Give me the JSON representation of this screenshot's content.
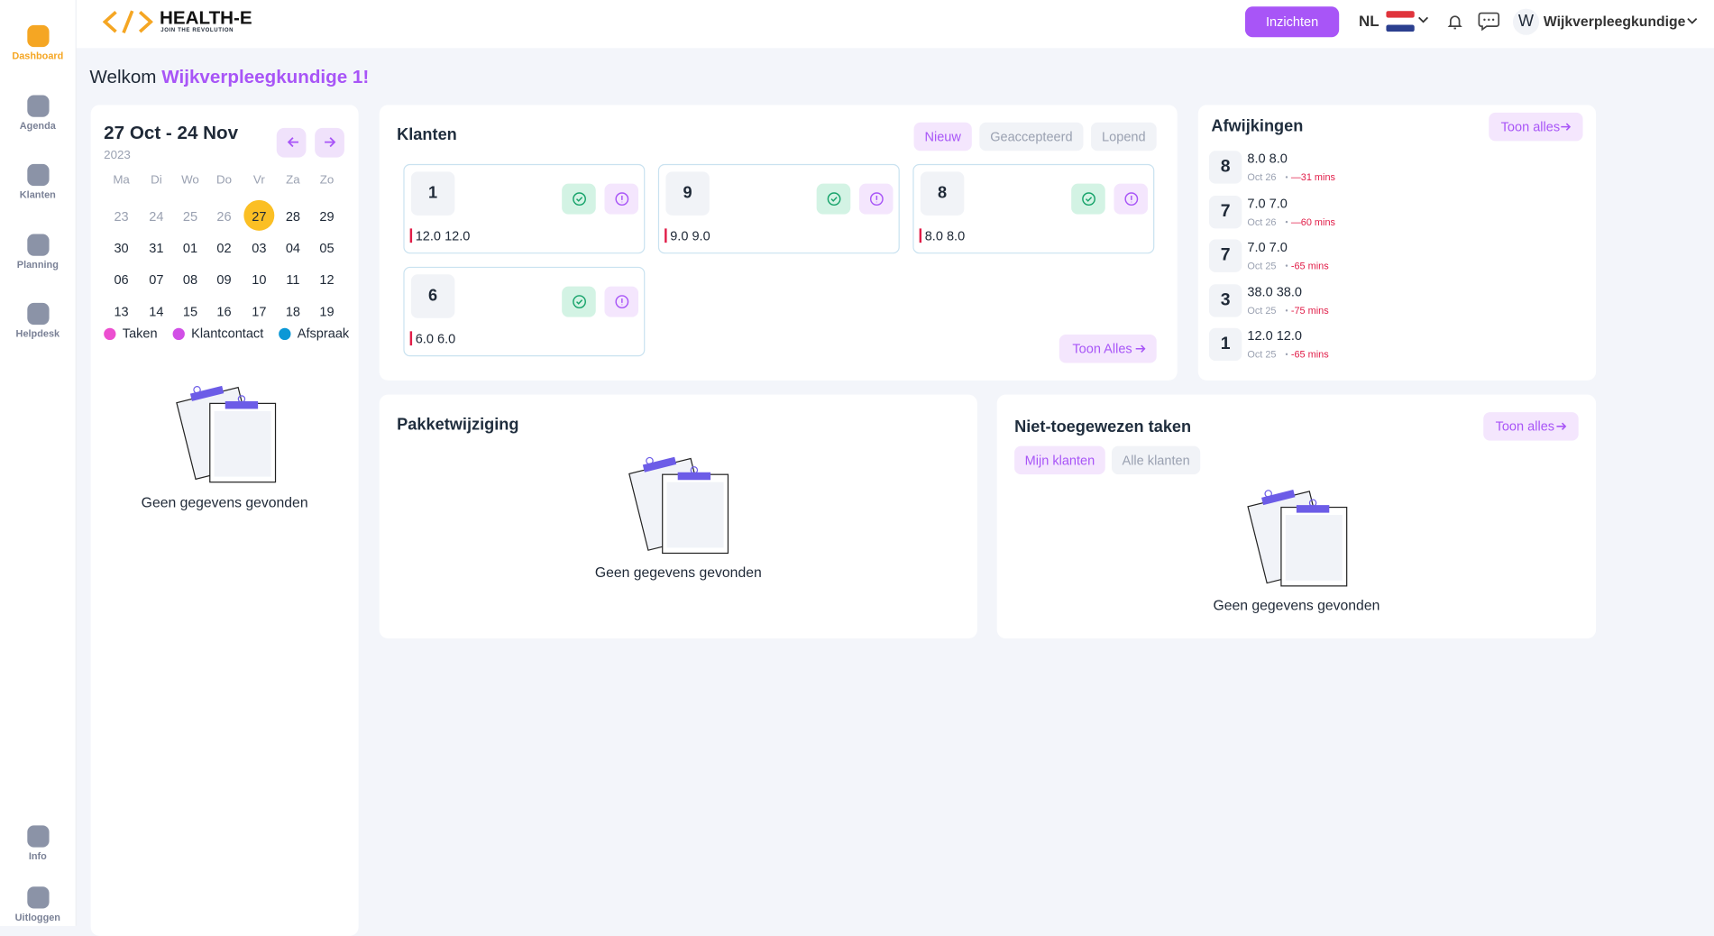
{
  "sidebar": {
    "items": [
      {
        "label": "Dashboard"
      },
      {
        "label": "Agenda"
      },
      {
        "label": "Klanten"
      },
      {
        "label": "Planning"
      },
      {
        "label": "Helpdesk"
      }
    ],
    "bottom": [
      {
        "label": "Info"
      },
      {
        "label": "Uitloggen"
      }
    ]
  },
  "header": {
    "logo": "HEALTH-E",
    "tagline": "JOIN THE REVOLUTION",
    "insights": "Inzichten",
    "language": "NL",
    "user_initial": "W",
    "user": "Wijkverpleegkundige"
  },
  "welcome": {
    "text": "Welkom",
    "name": "Wijkverpleegkundige 1!"
  },
  "calendar": {
    "range": "27 Oct - 24 Nov",
    "year": "2023",
    "weekdays": [
      "Ma",
      "Di",
      "Wo",
      "Do",
      "Vr",
      "Za",
      "Zo"
    ],
    "weeks": [
      [
        {
          "day": "23",
          "muted": true
        },
        {
          "day": "24",
          "muted": true
        },
        {
          "day": "25",
          "muted": true
        },
        {
          "day": "26",
          "muted": true
        },
        {
          "day": "27",
          "today": true
        },
        {
          "day": "28"
        },
        {
          "day": "29"
        }
      ],
      [
        {
          "day": "30"
        },
        {
          "day": "31"
        },
        {
          "day": "01"
        },
        {
          "day": "02"
        },
        {
          "day": "03"
        },
        {
          "day": "04"
        },
        {
          "day": "05"
        }
      ],
      [
        {
          "day": "06"
        },
        {
          "day": "07"
        },
        {
          "day": "08"
        },
        {
          "day": "09"
        },
        {
          "day": "10"
        },
        {
          "day": "11"
        },
        {
          "day": "12"
        }
      ],
      [
        {
          "day": "13"
        },
        {
          "day": "14"
        },
        {
          "day": "15"
        },
        {
          "day": "16"
        },
        {
          "day": "17"
        },
        {
          "day": "18"
        },
        {
          "day": "19"
        }
      ]
    ],
    "legend": [
      {
        "label": "Taken",
        "color": "#ec4fd0"
      },
      {
        "label": "Klantcontact",
        "color": "#d14fe6"
      },
      {
        "label": "Afspraak",
        "color": "#0b98d6"
      }
    ],
    "empty": "Geen gegevens gevonden"
  },
  "clients": {
    "title": "Klanten",
    "tabs": [
      "Nieuw",
      "Geaccepteerd",
      "Lopend"
    ],
    "cards": [
      {
        "number": "1",
        "hours": "12.0 12.0"
      },
      {
        "number": "9",
        "hours": "9.0 9.0"
      },
      {
        "number": "8",
        "hours": "8.0 8.0"
      },
      {
        "number": "6",
        "hours": "6.0 6.0"
      }
    ],
    "show_all": "Toon Alles"
  },
  "deviations": {
    "title": "Afwijkingen",
    "show_all": "Toon alles",
    "items": [
      {
        "number": "8",
        "hours": "8.0 8.0",
        "date": "Oct 26",
        "diff": "—31 mins"
      },
      {
        "number": "7",
        "hours": "7.0 7.0",
        "date": "Oct 26",
        "diff": "—60 mins"
      },
      {
        "number": "7",
        "hours": "7.0 7.0",
        "date": "Oct 25",
        "diff": "-65 mins"
      },
      {
        "number": "3",
        "hours": "38.0 38.0",
        "date": "Oct 25",
        "diff": "-75 mins"
      },
      {
        "number": "1",
        "hours": "12.0 12.0",
        "date": "Oct 25",
        "diff": "-65 mins"
      }
    ]
  },
  "package": {
    "title": "Pakketwijziging",
    "empty": "Geen gegevens gevonden"
  },
  "unassigned": {
    "title": "Niet-toegewezen taken",
    "show_all": "Toon alles",
    "tabs": [
      "Mijn klanten",
      "Alle klanten"
    ],
    "empty": "Geen gegevens gevonden"
  }
}
